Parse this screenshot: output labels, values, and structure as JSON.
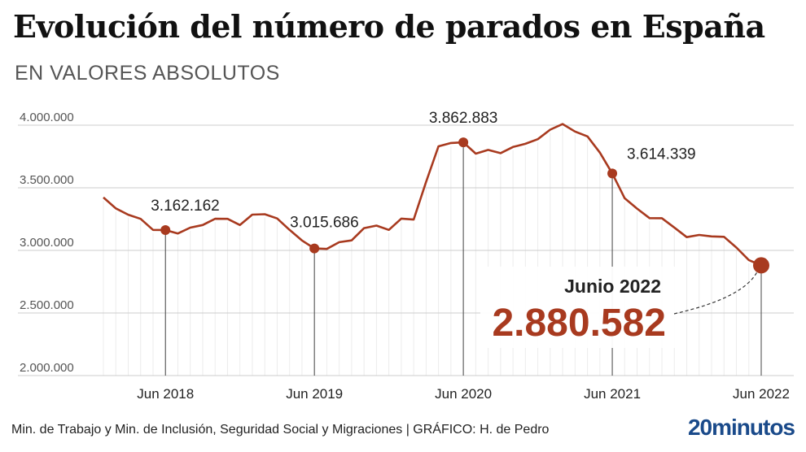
{
  "header": {
    "title": "Evolución del número de parados en España",
    "subtitle": "EN VALORES ABSOLUTOS"
  },
  "footer": {
    "source": "Min. de Trabajo y Min. de Inclusión, Seguridad Social y Migraciones  |  GRÁFICO: H. de Pedro",
    "logo": "20minutos"
  },
  "colors": {
    "line": "#a83a1f",
    "highlight": "#a83a1f",
    "grid": "#cccccc",
    "text": "#222222"
  },
  "chart_data": {
    "type": "line",
    "title": "Evolución del número de parados en España",
    "subtitle": "EN VALORES ABSOLUTOS",
    "xlabel": "",
    "ylabel": "",
    "ylim": [
      2000000,
      4000000
    ],
    "yticks": [
      4000000,
      3500000,
      3000000,
      2500000,
      2000000
    ],
    "ytick_labels": [
      "4.000.000",
      "3.500.000",
      "3.000.000",
      "2.500.000",
      "2.000.000"
    ],
    "xticks": [
      {
        "label": "Jun 2018",
        "index": 5
      },
      {
        "label": "Jun 2019",
        "index": 17
      },
      {
        "label": "Jun 2020",
        "index": 29
      },
      {
        "label": "Jun 2021",
        "index": 41
      },
      {
        "label": "Jun 2022",
        "index": 53
      }
    ],
    "grid": true,
    "series": [
      {
        "values": [
          3422551,
          3335868,
          3284979,
          3252130,
          3163566,
          3162162,
          3135021,
          3182068,
          3202509,
          3252867,
          3252130,
          3202297,
          3285761,
          3289040,
          3255084,
          3163566,
          3079491,
          3015686,
          3011433,
          3065804,
          3079711,
          3177659,
          3198184,
          3163566,
          3253853,
          3246047,
          3548312,
          3831203,
          3857776,
          3862883,
          3773034,
          3802814,
          3776485,
          3826043,
          3851312,
          3888137,
          3964353,
          4008789,
          3949640,
          3910628,
          3781250,
          3614339,
          3416498,
          3333915,
          3257802,
          3257068,
          3182687,
          3105905,
          3123078,
          3111684,
          3108763,
          3022503,
          2922991,
          2880582
        ]
      }
    ],
    "annotations": [
      {
        "index": 5,
        "label": "3.162.162"
      },
      {
        "index": 17,
        "label": "3.015.686"
      },
      {
        "index": 29,
        "label": "3.862.883"
      },
      {
        "index": 41,
        "label": "3.614.339"
      }
    ],
    "highlight": {
      "index": 53,
      "label": "Junio 2022",
      "value_label": "2.880.582"
    }
  }
}
